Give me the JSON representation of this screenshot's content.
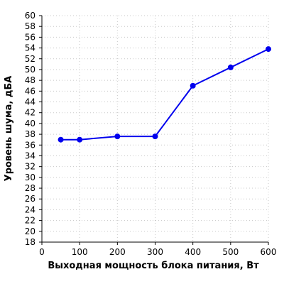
{
  "chart_data": {
    "type": "line",
    "title": "",
    "xlabel": "Выходная мощность блока питания, Вт",
    "ylabel": "Уровень шума, дБА",
    "xlim": [
      0,
      600
    ],
    "ylim": [
      18,
      60
    ],
    "xticks": [
      0,
      100,
      200,
      300,
      400,
      500,
      600
    ],
    "yticks": [
      18,
      20,
      22,
      24,
      26,
      28,
      30,
      32,
      34,
      36,
      38,
      40,
      42,
      44,
      46,
      48,
      50,
      52,
      54,
      56,
      58,
      60
    ],
    "grid": true,
    "series_color": "#0000ee",
    "series": [
      {
        "x": [
          50,
          100,
          200,
          300,
          400,
          500,
          600
        ],
        "y": [
          37.0,
          37.0,
          37.6,
          37.6,
          47.0,
          50.4,
          53.8
        ]
      }
    ]
  }
}
